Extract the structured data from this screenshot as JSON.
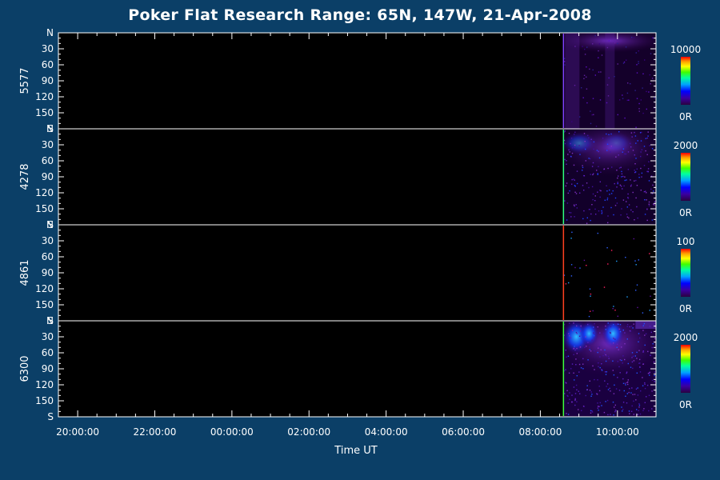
{
  "chart_data": {
    "type": "heatmap",
    "title": "Poker Flat Research Range: 65N, 147W, 21-Apr-2008",
    "xlabel": "Time UT",
    "x_ticks": [
      "20:00:00",
      "22:00:00",
      "00:00:00",
      "02:00:00",
      "04:00:00",
      "06:00:00",
      "08:00:00",
      "10:00:00"
    ],
    "x_tick_hours": [
      20,
      22,
      24,
      26,
      28,
      30,
      32,
      34
    ],
    "x_range_hours": [
      19.5,
      35.0
    ],
    "data_start_hours": 32.6,
    "y_ticks": [
      "N",
      "30",
      "60",
      "90",
      "120",
      "150",
      "S"
    ],
    "y_tick_values": [
      0,
      30,
      60,
      90,
      120,
      150,
      180
    ],
    "y_range": [
      0,
      180
    ],
    "panels": [
      {
        "name": "5577",
        "colorbar_max": "10000",
        "colorbar_min": "0R"
      },
      {
        "name": "4278",
        "colorbar_max": "2000",
        "colorbar_min": "0R"
      },
      {
        "name": "4861",
        "colorbar_max": "100",
        "colorbar_min": "0R"
      },
      {
        "name": "6300",
        "colorbar_max": "2000",
        "colorbar_min": "0R"
      }
    ],
    "colorscale": [
      "#2a0040",
      "#3a00a0",
      "#0000ff",
      "#00a0ff",
      "#00ffa0",
      "#40ff00",
      "#ffff00",
      "#ffa000",
      "#ff0000"
    ]
  }
}
